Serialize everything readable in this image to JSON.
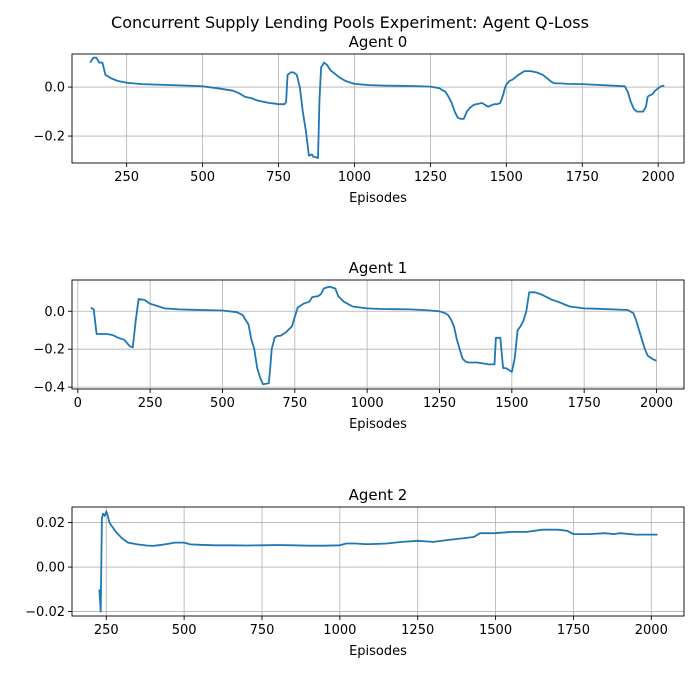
{
  "figure": {
    "suptitle": "Concurrent Supply Lending Pools Experiment: Agent Q-Loss",
    "line_color": "#1f77b4"
  },
  "chart_data": [
    {
      "type": "line",
      "title": "Agent 0",
      "xlabel": "Episodes",
      "ylabel": "",
      "grid": true,
      "xlim": [
        70,
        2085
      ],
      "ylim": [
        -0.31,
        0.135
      ],
      "xticks": [
        250,
        500,
        750,
        1000,
        1250,
        1500,
        1750,
        2000
      ],
      "yticks": [
        0.0,
        -0.2
      ],
      "ytick_labels": [
        "0.0",
        "−0.2"
      ],
      "series": [
        {
          "x": [
            130,
            140,
            150,
            160,
            170,
            180,
            200,
            220,
            250,
            300,
            350,
            400,
            450,
            500,
            550,
            600,
            620,
            640,
            660,
            680,
            700,
            720,
            740,
            750,
            760,
            770,
            775,
            780,
            790,
            800,
            810,
            820,
            830,
            840,
            850,
            860,
            865,
            870,
            880,
            885,
            890,
            900,
            910,
            920,
            930,
            950,
            970,
            1000,
            1050,
            1100,
            1150,
            1200,
            1250,
            1280,
            1300,
            1310,
            1320,
            1330,
            1340,
            1350,
            1360,
            1370,
            1380,
            1390,
            1400,
            1420,
            1440,
            1450,
            1460,
            1470,
            1480,
            1490,
            1495,
            1500,
            1510,
            1520,
            1540,
            1560,
            1580,
            1600,
            1620,
            1640,
            1650,
            1660,
            1680,
            1700,
            1750,
            1800,
            1850,
            1890,
            1900,
            1910,
            1920,
            1930,
            1940,
            1950,
            1960,
            1965,
            1970,
            1980,
            1990,
            2000,
            2010,
            2020
          ],
          "y": [
            0.1,
            0.12,
            0.12,
            0.1,
            0.1,
            0.05,
            0.035,
            0.025,
            0.018,
            0.012,
            0.01,
            0.008,
            0.006,
            0.003,
            -0.005,
            -0.015,
            -0.025,
            -0.04,
            -0.045,
            -0.055,
            -0.06,
            -0.065,
            -0.068,
            -0.07,
            -0.07,
            -0.07,
            -0.06,
            0.05,
            0.06,
            0.06,
            0.05,
            0.0,
            -0.1,
            -0.18,
            -0.28,
            -0.275,
            -0.285,
            -0.285,
            -0.29,
            -0.05,
            0.08,
            0.1,
            0.09,
            0.07,
            0.06,
            0.04,
            0.025,
            0.013,
            0.008,
            0.006,
            0.005,
            0.004,
            0.002,
            -0.005,
            -0.02,
            -0.04,
            -0.065,
            -0.1,
            -0.125,
            -0.13,
            -0.13,
            -0.1,
            -0.085,
            -0.075,
            -0.07,
            -0.065,
            -0.08,
            -0.075,
            -0.07,
            -0.07,
            -0.065,
            -0.03,
            -0.005,
            0.01,
            0.025,
            0.03,
            0.05,
            0.065,
            0.065,
            0.06,
            0.05,
            0.03,
            0.02,
            0.015,
            0.015,
            0.013,
            0.012,
            0.009,
            0.006,
            0.003,
            -0.02,
            -0.06,
            -0.09,
            -0.1,
            -0.1,
            -0.1,
            -0.08,
            -0.04,
            -0.035,
            -0.03,
            -0.015,
            -0.005,
            0.003,
            0.006
          ]
        }
      ]
    },
    {
      "type": "line",
      "title": "Agent 1",
      "xlabel": "Episodes",
      "ylabel": "",
      "grid": true,
      "xlim": [
        -20,
        2095
      ],
      "ylim": [
        -0.41,
        0.165
      ],
      "xticks": [
        0,
        250,
        500,
        750,
        1000,
        1250,
        1500,
        1750,
        2000
      ],
      "yticks": [
        0.0,
        -0.2,
        -0.4
      ],
      "ytick_labels": [
        "0.0",
        "−0.2",
        "−0.4"
      ],
      "series": [
        {
          "x": [
            45,
            55,
            65,
            80,
            100,
            120,
            140,
            160,
            180,
            190,
            200,
            210,
            230,
            250,
            280,
            300,
            350,
            400,
            450,
            500,
            550,
            570,
            590,
            600,
            610,
            620,
            630,
            640,
            660,
            665,
            670,
            680,
            690,
            700,
            720,
            740,
            760,
            780,
            800,
            810,
            830,
            840,
            850,
            870,
            880,
            890,
            900,
            920,
            950,
            1000,
            1050,
            1100,
            1150,
            1200,
            1250,
            1270,
            1280,
            1290,
            1300,
            1310,
            1320,
            1330,
            1340,
            1350,
            1380,
            1400,
            1420,
            1440,
            1445,
            1450,
            1460,
            1470,
            1480,
            1490,
            1500,
            1510,
            1520,
            1530,
            1540,
            1550,
            1560,
            1580,
            1600,
            1620,
            1640,
            1660,
            1700,
            1750,
            1800,
            1850,
            1900,
            1920,
            1930,
            1940,
            1950,
            1960,
            1970,
            1980,
            1990,
            2000
          ],
          "y": [
            0.02,
            0.01,
            -0.12,
            -0.12,
            -0.12,
            -0.125,
            -0.14,
            -0.15,
            -0.185,
            -0.19,
            -0.05,
            0.065,
            0.06,
            0.04,
            0.025,
            0.015,
            0.01,
            0.008,
            0.006,
            0.004,
            -0.005,
            -0.02,
            -0.07,
            -0.15,
            -0.2,
            -0.3,
            -0.35,
            -0.385,
            -0.38,
            -0.3,
            -0.2,
            -0.14,
            -0.13,
            -0.13,
            -0.11,
            -0.08,
            0.02,
            0.04,
            0.05,
            0.075,
            0.08,
            0.09,
            0.12,
            0.13,
            0.125,
            0.12,
            0.08,
            0.05,
            0.025,
            0.015,
            0.012,
            0.011,
            0.01,
            0.006,
            0.0,
            -0.01,
            -0.02,
            -0.045,
            -0.08,
            -0.15,
            -0.2,
            -0.25,
            -0.265,
            -0.27,
            -0.27,
            -0.275,
            -0.28,
            -0.28,
            -0.14,
            -0.14,
            -0.14,
            -0.3,
            -0.3,
            -0.31,
            -0.32,
            -0.25,
            -0.1,
            -0.08,
            -0.05,
            0.0,
            0.1,
            0.1,
            0.09,
            0.075,
            0.06,
            0.05,
            0.025,
            0.015,
            0.013,
            0.01,
            0.007,
            -0.01,
            -0.05,
            -0.1,
            -0.15,
            -0.2,
            -0.235,
            -0.245,
            -0.255,
            -0.26
          ]
        }
      ]
    },
    {
      "type": "line",
      "title": "Agent 2",
      "xlabel": "Episodes",
      "ylabel": "",
      "grid": true,
      "xlim": [
        140,
        2105
      ],
      "ylim": [
        -0.022,
        0.027
      ],
      "xticks": [
        250,
        500,
        750,
        1000,
        1250,
        1500,
        1750,
        2000
      ],
      "yticks": [
        0.02,
        0.0,
        -0.02
      ],
      "ytick_labels": [
        "0.02",
        "0.00",
        "−0.02"
      ],
      "series": [
        {
          "x": [
            228,
            232,
            236,
            240,
            245,
            250,
            255,
            260,
            270,
            280,
            300,
            320,
            350,
            380,
            400,
            430,
            450,
            470,
            500,
            520,
            550,
            600,
            650,
            700,
            750,
            800,
            850,
            900,
            950,
            1000,
            1020,
            1050,
            1080,
            1100,
            1150,
            1200,
            1250,
            1300,
            1350,
            1400,
            1430,
            1450,
            1480,
            1500,
            1550,
            1600,
            1650,
            1700,
            1730,
            1750,
            1780,
            1800,
            1850,
            1880,
            1900,
            1950,
            2000,
            2020
          ],
          "y": [
            -0.01,
            -0.02,
            0.022,
            0.024,
            0.023,
            0.025,
            0.023,
            0.02,
            0.018,
            0.016,
            0.013,
            0.011,
            0.0102,
            0.0097,
            0.0095,
            0.01,
            0.0105,
            0.011,
            0.011,
            0.0102,
            0.01,
            0.0098,
            0.0098,
            0.0097,
            0.0098,
            0.0099,
            0.0098,
            0.0096,
            0.0096,
            0.0098,
            0.0106,
            0.0106,
            0.0103,
            0.0103,
            0.0106,
            0.0113,
            0.0118,
            0.0113,
            0.0122,
            0.013,
            0.0135,
            0.0152,
            0.0152,
            0.0152,
            0.0158,
            0.0158,
            0.0168,
            0.0168,
            0.0163,
            0.0148,
            0.0148,
            0.0148,
            0.0152,
            0.0148,
            0.0152,
            0.0146,
            0.0146,
            0.0146
          ]
        }
      ]
    }
  ]
}
